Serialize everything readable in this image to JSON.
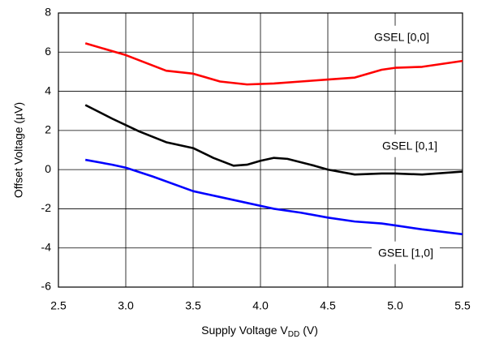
{
  "chart_data": {
    "type": "line",
    "xlabel": {
      "text": "Supply Voltage V",
      "subscript": "DD",
      "suffix": "(V)"
    },
    "ylabel": "Offset Voltage  (µV)",
    "xlim": [
      2.5,
      5.5
    ],
    "xticks": [
      2.5,
      {
        "value": 3,
        "label": "3.0"
      },
      3.5,
      {
        "value": 4,
        "label": "4.0"
      },
      4.5,
      {
        "value": 5,
        "label": "5.0"
      },
      5.5
    ],
    "ylim": [
      -6,
      8
    ],
    "yticks": [
      -6,
      -4,
      -2,
      0,
      2,
      4,
      6,
      8
    ],
    "grid": true,
    "series": [
      {
        "name": "GSEL [0,0]",
        "color": "#ff0000",
        "x": [
          2.7,
          3.0,
          3.3,
          3.5,
          3.7,
          3.9,
          4.1,
          4.3,
          4.5,
          4.7,
          4.9,
          5.0,
          5.2,
          5.5
        ],
        "values": [
          6.45,
          5.85,
          5.05,
          4.9,
          4.5,
          4.35,
          4.4,
          4.5,
          4.6,
          4.7,
          5.1,
          5.2,
          5.25,
          5.55
        ]
      },
      {
        "name": "GSEL [0,1]",
        "color": "#000000",
        "x": [
          2.7,
          2.9,
          3.1,
          3.3,
          3.5,
          3.65,
          3.8,
          3.9,
          4.0,
          4.1,
          4.2,
          4.4,
          4.5,
          4.7,
          4.9,
          5.0,
          5.2,
          5.5
        ],
        "values": [
          3.3,
          2.6,
          1.95,
          1.4,
          1.1,
          0.6,
          0.2,
          0.25,
          0.45,
          0.6,
          0.55,
          0.2,
          0,
          -0.25,
          -0.2,
          -0.2,
          -0.25,
          -0.1
        ]
      },
      {
        "name": "GSEL [1,0]",
        "color": "#0000ff",
        "x": [
          2.7,
          2.9,
          3.0,
          3.2,
          3.5,
          3.7,
          3.9,
          4.1,
          4.3,
          4.5,
          4.7,
          4.9,
          5.0,
          5.2,
          5.5
        ],
        "values": [
          0.5,
          0.25,
          0.1,
          -0.35,
          -1.1,
          -1.4,
          -1.7,
          -2.0,
          -2.2,
          -2.45,
          -2.65,
          -2.75,
          -2.85,
          -3.05,
          -3.3
        ]
      }
    ]
  }
}
